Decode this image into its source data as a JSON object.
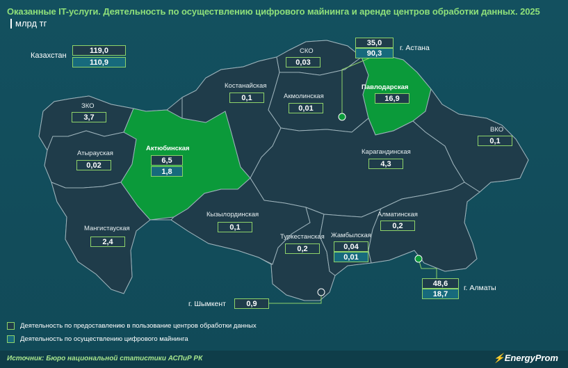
{
  "title": "Оказанные IT-услуги. Деятельность по осуществлению цифрового майнинга и аренде центров обработки данных. 2025",
  "unit": "млрд тг",
  "colors": {
    "background": "#13505e",
    "region_fill": "#1f3c4a",
    "highlight_fill": "#0b9a3a",
    "title_color": "#8fe07a",
    "data_center_box": "#1f3c4a",
    "mining_box": "#176a7c",
    "box_border": "#8ed36a"
  },
  "kazakhstan": {
    "label": "Казахстан",
    "data_centers": "119,0",
    "mining": "110,9"
  },
  "regions": [
    {
      "key": "zko",
      "name": "ЗКО",
      "data_centers": "3,7",
      "highlight": false
    },
    {
      "key": "atyrau",
      "name": "Атырауская",
      "data_centers": "0,02",
      "highlight": false
    },
    {
      "key": "aktobe",
      "name": "Актюбинская",
      "data_centers": "6,5",
      "mining": "1,8",
      "highlight": true
    },
    {
      "key": "mangistau",
      "name": "Мангистауская",
      "data_centers": "2,4",
      "highlight": false
    },
    {
      "key": "kostanay",
      "name": "Костанайская",
      "data_centers": "0,1",
      "highlight": false
    },
    {
      "key": "sko",
      "name": "СКО",
      "data_centers": "0,03",
      "highlight": false
    },
    {
      "key": "akmola",
      "name": "Акмолинская",
      "data_centers": "0,01",
      "highlight": false
    },
    {
      "key": "pavlodar",
      "name": "Павлодарская",
      "data_centers": "16,9",
      "highlight": true
    },
    {
      "key": "vko",
      "name": "ВКО",
      "data_centers": "0,1",
      "highlight": false
    },
    {
      "key": "karaganda",
      "name": "Карагандинская",
      "data_centers": "4,3",
      "highlight": false
    },
    {
      "key": "kyzylorda",
      "name": "Кызылординская",
      "data_centers": "0,1",
      "highlight": false
    },
    {
      "key": "turkestan",
      "name": "Туркестанская",
      "data_centers": "0,2",
      "highlight": false
    },
    {
      "key": "zhambyl",
      "name": "Жамбылская",
      "data_centers": "0,04",
      "mining": "0,01",
      "highlight": false
    },
    {
      "key": "almaty_reg",
      "name": "Алматинская",
      "data_centers": "0,2",
      "highlight": false
    }
  ],
  "cities": [
    {
      "key": "astana",
      "name": "г. Астана",
      "data_centers": "35,0",
      "mining": "90,3"
    },
    {
      "key": "almaty",
      "name": "г. Алматы",
      "data_centers": "48,6",
      "mining": "18,7"
    },
    {
      "key": "shymkent",
      "name": "г. Шымкент",
      "data_centers": "0,9"
    }
  ],
  "legend": [
    {
      "key": "data_centers",
      "label": "Деятельность по предоставлению в пользование центров обработки данных",
      "color": "#1f3c4a"
    },
    {
      "key": "mining",
      "label": "Деятельность по осуществлению цифрового майнинга",
      "color": "#176a7c"
    }
  ],
  "source": "Источник: Бюро национальной статистики АСПиР РК",
  "brand": "EnergyProm"
}
